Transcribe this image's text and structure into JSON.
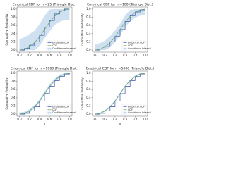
{
  "chart_data": [
    {
      "type": "line",
      "title": "Empirical CDF for n =25 (Triangle Dist.)",
      "ylabel": "Cumulative Probability",
      "x": [
        0,
        0.1,
        0.2,
        0.3,
        0.4,
        0.5,
        0.6,
        0.7,
        0.8,
        0.9,
        1
      ],
      "series": [
        {
          "name": "Empirical CDF",
          "color": "#3a4fb0",
          "step": true,
          "values": [
            0,
            0.04,
            0.12,
            0.2,
            0.36,
            0.56,
            0.72,
            0.88,
            0.96,
            1,
            1
          ]
        },
        {
          "name": "CDF",
          "color": "#5aa05a",
          "values": [
            0,
            0.02,
            0.08,
            0.18,
            0.32,
            0.5,
            0.68,
            0.82,
            0.92,
            0.98,
            1
          ]
        },
        {
          "name": "Confidence Interval",
          "color": "#c3d8ee",
          "upper": [
            0.27,
            0.31,
            0.39,
            0.47,
            0.63,
            0.83,
            0.99,
            1,
            1,
            1,
            1
          ],
          "lower": [
            0,
            0,
            0,
            0,
            0.09,
            0.29,
            0.45,
            0.61,
            0.69,
            0.73,
            0.73
          ]
        }
      ],
      "xlim": [
        -0.05,
        1.05
      ],
      "ylim": [
        -0.05,
        1.05
      ],
      "xticks": [
        {
          "value": 0,
          "label": "0.0"
        },
        0.2,
        0.4,
        0.6,
        0.8,
        {
          "value": 1,
          "label": "1.0"
        }
      ],
      "yticks": [
        {
          "value": 0,
          "label": "0.0"
        },
        0.2,
        0.4,
        0.6,
        0.8,
        {
          "value": 1,
          "label": "1.0"
        }
      ],
      "legend": "lower right"
    },
    {
      "type": "line",
      "title": "Empirical CDF for n =100 (Triangle Dist.)",
      "ylabel": "Cumulative Probability",
      "x": [
        0,
        0.1,
        0.2,
        0.3,
        0.4,
        0.5,
        0.6,
        0.7,
        0.8,
        0.9,
        1
      ],
      "series": [
        {
          "name": "Empirical CDF",
          "color": "#3a4fb0",
          "step": true,
          "values": [
            0,
            0.03,
            0.09,
            0.2,
            0.34,
            0.5,
            0.7,
            0.84,
            0.93,
            0.98,
            1
          ]
        },
        {
          "name": "CDF",
          "color": "#5aa05a",
          "values": [
            0,
            0.02,
            0.08,
            0.18,
            0.32,
            0.5,
            0.68,
            0.82,
            0.92,
            0.98,
            1
          ]
        },
        {
          "name": "Confidence Interval",
          "color": "#c3d8ee",
          "upper": [
            0.14,
            0.17,
            0.23,
            0.34,
            0.48,
            0.64,
            0.84,
            0.98,
            1,
            1,
            1
          ],
          "lower": [
            0,
            0,
            0,
            0.06,
            0.2,
            0.36,
            0.56,
            0.7,
            0.79,
            0.84,
            0.86
          ]
        }
      ],
      "xlim": [
        -0.05,
        1.05
      ],
      "ylim": [
        -0.05,
        1.05
      ],
      "xticks": [
        {
          "value": 0,
          "label": "0.0"
        },
        0.2,
        0.4,
        0.6,
        0.8,
        {
          "value": 1,
          "label": "1.0"
        }
      ],
      "yticks": [
        {
          "value": 0,
          "label": "0.0"
        },
        0.2,
        0.4,
        0.6,
        0.8,
        {
          "value": 1,
          "label": "1.0"
        }
      ],
      "legend": "lower right"
    },
    {
      "type": "line",
      "title": "Empirical CDF for n =1000 (Triangle Dist.)",
      "ylabel": "Cumulative Probability",
      "xlabel": "x",
      "x": [
        0,
        0.1,
        0.2,
        0.3,
        0.4,
        0.5,
        0.6,
        0.7,
        0.8,
        0.9,
        1
      ],
      "series": [
        {
          "name": "Empirical CDF",
          "color": "#3a4fb0",
          "step": true,
          "values": [
            0,
            0.02,
            0.08,
            0.18,
            0.32,
            0.51,
            0.68,
            0.82,
            0.92,
            0.98,
            1
          ]
        },
        {
          "name": "CDF",
          "color": "#5aa05a",
          "values": [
            0,
            0.02,
            0.08,
            0.18,
            0.32,
            0.5,
            0.68,
            0.82,
            0.92,
            0.98,
            1
          ]
        },
        {
          "name": "Confidence Interval",
          "color": "#c3d8ee",
          "upper": [
            0.04,
            0.06,
            0.12,
            0.22,
            0.36,
            0.55,
            0.72,
            0.86,
            0.96,
            1,
            1
          ],
          "lower": [
            0,
            0,
            0.04,
            0.14,
            0.28,
            0.47,
            0.64,
            0.78,
            0.88,
            0.94,
            0.96
          ]
        }
      ],
      "xlim": [
        -0.05,
        1.05
      ],
      "ylim": [
        -0.05,
        1.05
      ],
      "xticks": [
        {
          "value": 0,
          "label": "0.0"
        },
        0.2,
        0.4,
        0.6,
        0.8,
        {
          "value": 1,
          "label": "1.0"
        }
      ],
      "yticks": [
        {
          "value": 0,
          "label": "0.0"
        },
        0.2,
        0.4,
        0.6,
        0.8,
        {
          "value": 1,
          "label": "1.0"
        }
      ],
      "legend": "lower right"
    },
    {
      "type": "line",
      "title": "Empirical CDF for n =5000 (Triangle Dist.)",
      "ylabel": "Cumulative Probability",
      "xlabel": "x",
      "x": [
        0,
        0.1,
        0.2,
        0.3,
        0.4,
        0.5,
        0.6,
        0.7,
        0.8,
        0.9,
        1
      ],
      "series": [
        {
          "name": "Empirical CDF",
          "color": "#3a4fb0",
          "step": true,
          "values": [
            0,
            0.02,
            0.08,
            0.18,
            0.32,
            0.5,
            0.68,
            0.82,
            0.92,
            0.98,
            1
          ]
        },
        {
          "name": "CDF",
          "color": "#5aa05a",
          "values": [
            0,
            0.02,
            0.08,
            0.18,
            0.32,
            0.5,
            0.68,
            0.82,
            0.92,
            0.98,
            1
          ]
        },
        {
          "name": "Confidence Interval",
          "color": "#c3d8ee",
          "upper": [
            0.02,
            0.04,
            0.1,
            0.2,
            0.34,
            0.52,
            0.7,
            0.84,
            0.94,
            1,
            1
          ],
          "lower": [
            0,
            0,
            0.06,
            0.16,
            0.3,
            0.48,
            0.66,
            0.8,
            0.9,
            0.96,
            0.98
          ]
        }
      ],
      "xlim": [
        -0.05,
        1.05
      ],
      "ylim": [
        -0.05,
        1.05
      ],
      "xticks": [
        {
          "value": 0,
          "label": "0.0"
        },
        0.2,
        0.4,
        0.6,
        0.8,
        {
          "value": 1,
          "label": "1.0"
        }
      ],
      "yticks": [
        {
          "value": 0,
          "label": "0.0"
        },
        0.2,
        0.4,
        0.6,
        0.8,
        {
          "value": 1,
          "label": "1.0"
        }
      ],
      "legend": "lower right"
    }
  ]
}
